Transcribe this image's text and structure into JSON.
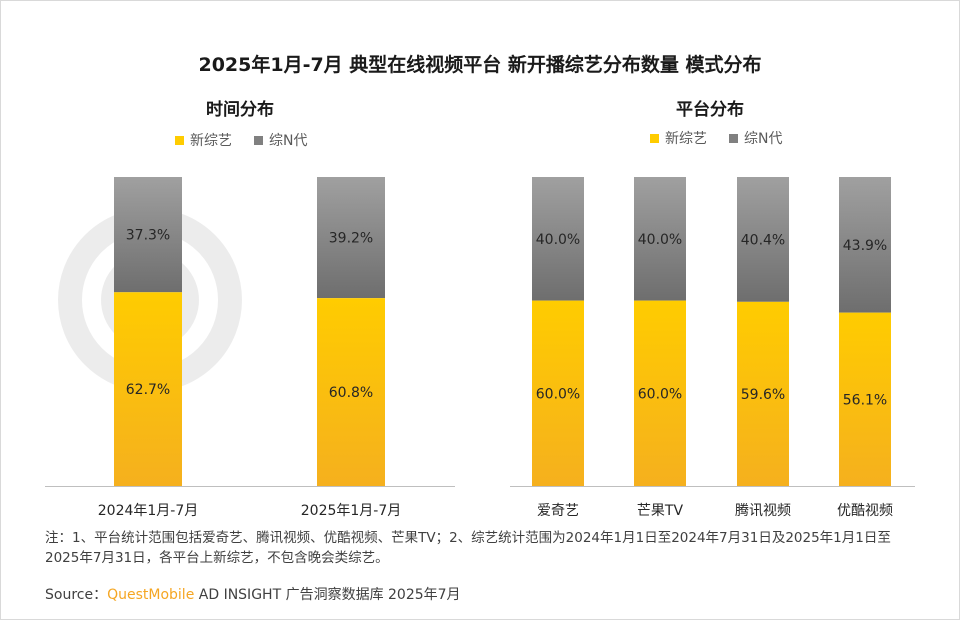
{
  "title": "2025年1月-7月 典型在线视频平台 新开播综艺分布数量 模式分布",
  "colors": {
    "new": "#f5b01e",
    "new_top": "#ffcc00",
    "n_gen": "#8c8c8c",
    "n_gen_top": "#9a9a9a",
    "axis": "#bfbfbf"
  },
  "chart_data": [
    {
      "type": "bar",
      "stacked": true,
      "title": "时间分布",
      "categories": [
        "2024年1月-7月",
        "2025年1月-7月"
      ],
      "series": [
        {
          "name": "新综艺",
          "values": [
            62.7,
            60.8
          ]
        },
        {
          "name": "综N代",
          "values": [
            37.3,
            39.2
          ]
        }
      ],
      "labels": {
        "新综艺": [
          "62.7%",
          "60.8%"
        ],
        "综N代": [
          "37.3%",
          "39.2%"
        ]
      },
      "ylim": [
        0,
        100
      ],
      "legend": [
        "新综艺",
        "综N代"
      ]
    },
    {
      "type": "bar",
      "stacked": true,
      "title": "平台分布",
      "categories": [
        "爱奇艺",
        "芒果TV",
        "腾讯视频",
        "优酷视频"
      ],
      "series": [
        {
          "name": "新综艺",
          "values": [
            60.0,
            60.0,
            59.6,
            56.1
          ]
        },
        {
          "name": "综N代",
          "values": [
            40.0,
            40.0,
            40.4,
            43.9
          ]
        }
      ],
      "labels": {
        "新综艺": [
          "60.0%",
          "60.0%",
          "59.6%",
          "56.1%"
        ],
        "综N代": [
          "40.0%",
          "40.0%",
          "40.4%",
          "43.9%"
        ]
      },
      "ylim": [
        0,
        100
      ],
      "legend": [
        "新综艺",
        "综N代"
      ]
    }
  ],
  "note": "注：1、平台统计范围包括爱奇艺、腾讯视频、优酷视频、芒果TV；2、综艺统计范围为2024年1月1日至2024年7月31日及2025年1月1日至2025年7月31日，各平台上新综艺，不包含晚会类综艺。",
  "source": {
    "prefix": "Source：",
    "brand": "QuestMobile",
    "rest": " AD INSIGHT 广告洞察数据库 2025年7月"
  }
}
